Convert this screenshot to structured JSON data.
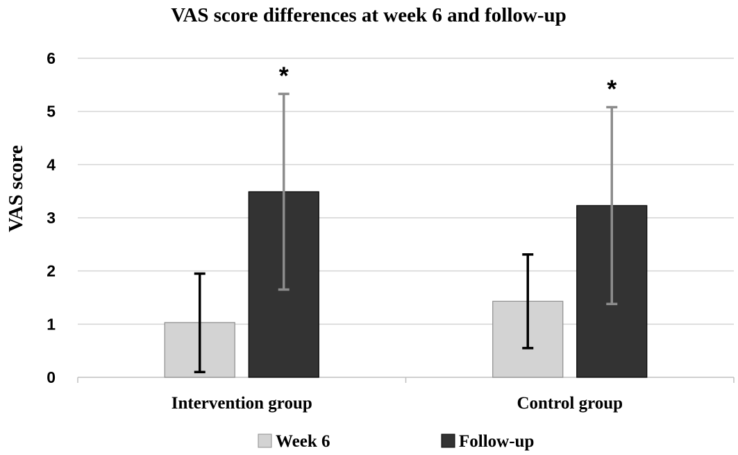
{
  "chart_data": {
    "type": "bar",
    "title": "VAS score differences at week 6 and follow-up",
    "ylabel": "VAS score",
    "xlabel": "",
    "ylim": [
      0,
      6
    ],
    "yticks": [
      "0",
      "1",
      "2",
      "3",
      "4",
      "5",
      "6"
    ],
    "grid": true,
    "legend_position": "bottom",
    "categories": [
      "Intervention group",
      "Control group"
    ],
    "series": [
      {
        "name": "Week 6",
        "color": "#d3d3d3",
        "error_color": "#000000",
        "values": [
          1.03,
          1.43
        ],
        "error_low": [
          0.1,
          0.55
        ],
        "error_high": [
          1.95,
          2.31
        ]
      },
      {
        "name": "Follow-up",
        "color": "#333333",
        "error_color": "#8c8c8c",
        "values": [
          3.49,
          3.23
        ],
        "error_low": [
          1.65,
          1.38
        ],
        "error_high": [
          5.33,
          5.08
        ]
      }
    ],
    "annotations": [
      {
        "text": "*",
        "category": 0,
        "series": 1
      },
      {
        "text": "*",
        "category": 1,
        "series": 1
      }
    ]
  }
}
